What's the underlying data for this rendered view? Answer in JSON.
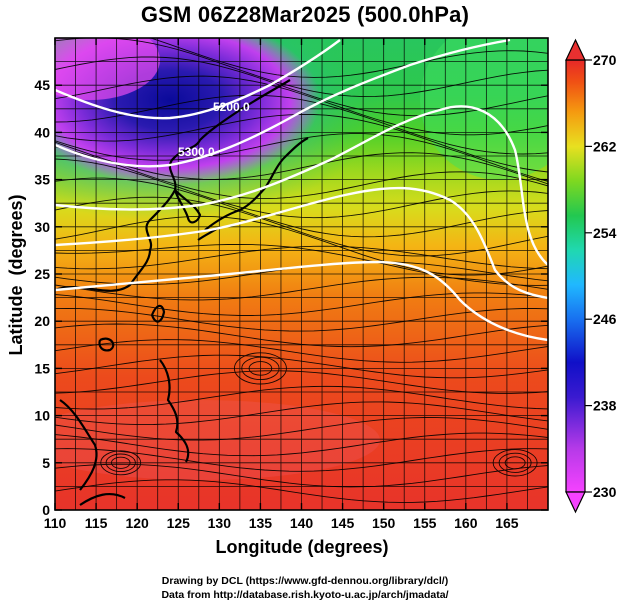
{
  "title": "GSM 06Z28Mar2025 (500.0hPa)",
  "footer": {
    "line1": "Drawing by DCL (https://www.gfd-dennou.org/library/dcl/)",
    "line2": "Data from http://database.rish.kyoto-u.ac.jp/arch/jmadata/"
  },
  "chart_data": {
    "type": "heatmap",
    "title": "GSM 06Z28Mar2025 (500.0hPa)",
    "xlabel": "Longitude (degrees)",
    "ylabel": "Latitude  (degrees)",
    "xlim": [
      110,
      170
    ],
    "ylim": [
      0,
      50
    ],
    "x_ticks": [
      "110",
      "115",
      "120",
      "125",
      "130",
      "135",
      "140",
      "145",
      "150",
      "155",
      "160",
      "165"
    ],
    "y_ticks": [
      "0",
      "5",
      "10",
      "15",
      "20",
      "25",
      "30",
      "35",
      "40",
      "45"
    ],
    "colorbar": {
      "min": 230,
      "max": 270,
      "tick_labels": [
        "270",
        "262",
        "254",
        "246",
        "238",
        "230"
      ],
      "colors": [
        "#f542ff",
        "#8a2be2",
        "#1010c8",
        "#2080ff",
        "#20d8d0",
        "#22c850",
        "#7ed820",
        "#e8e020",
        "#f59a10",
        "#f05014",
        "#e62828"
      ]
    },
    "contour_labels": [
      "5200.0",
      "5300.0"
    ],
    "overlay": "wind streamlines and geopotential height contours (white)"
  }
}
